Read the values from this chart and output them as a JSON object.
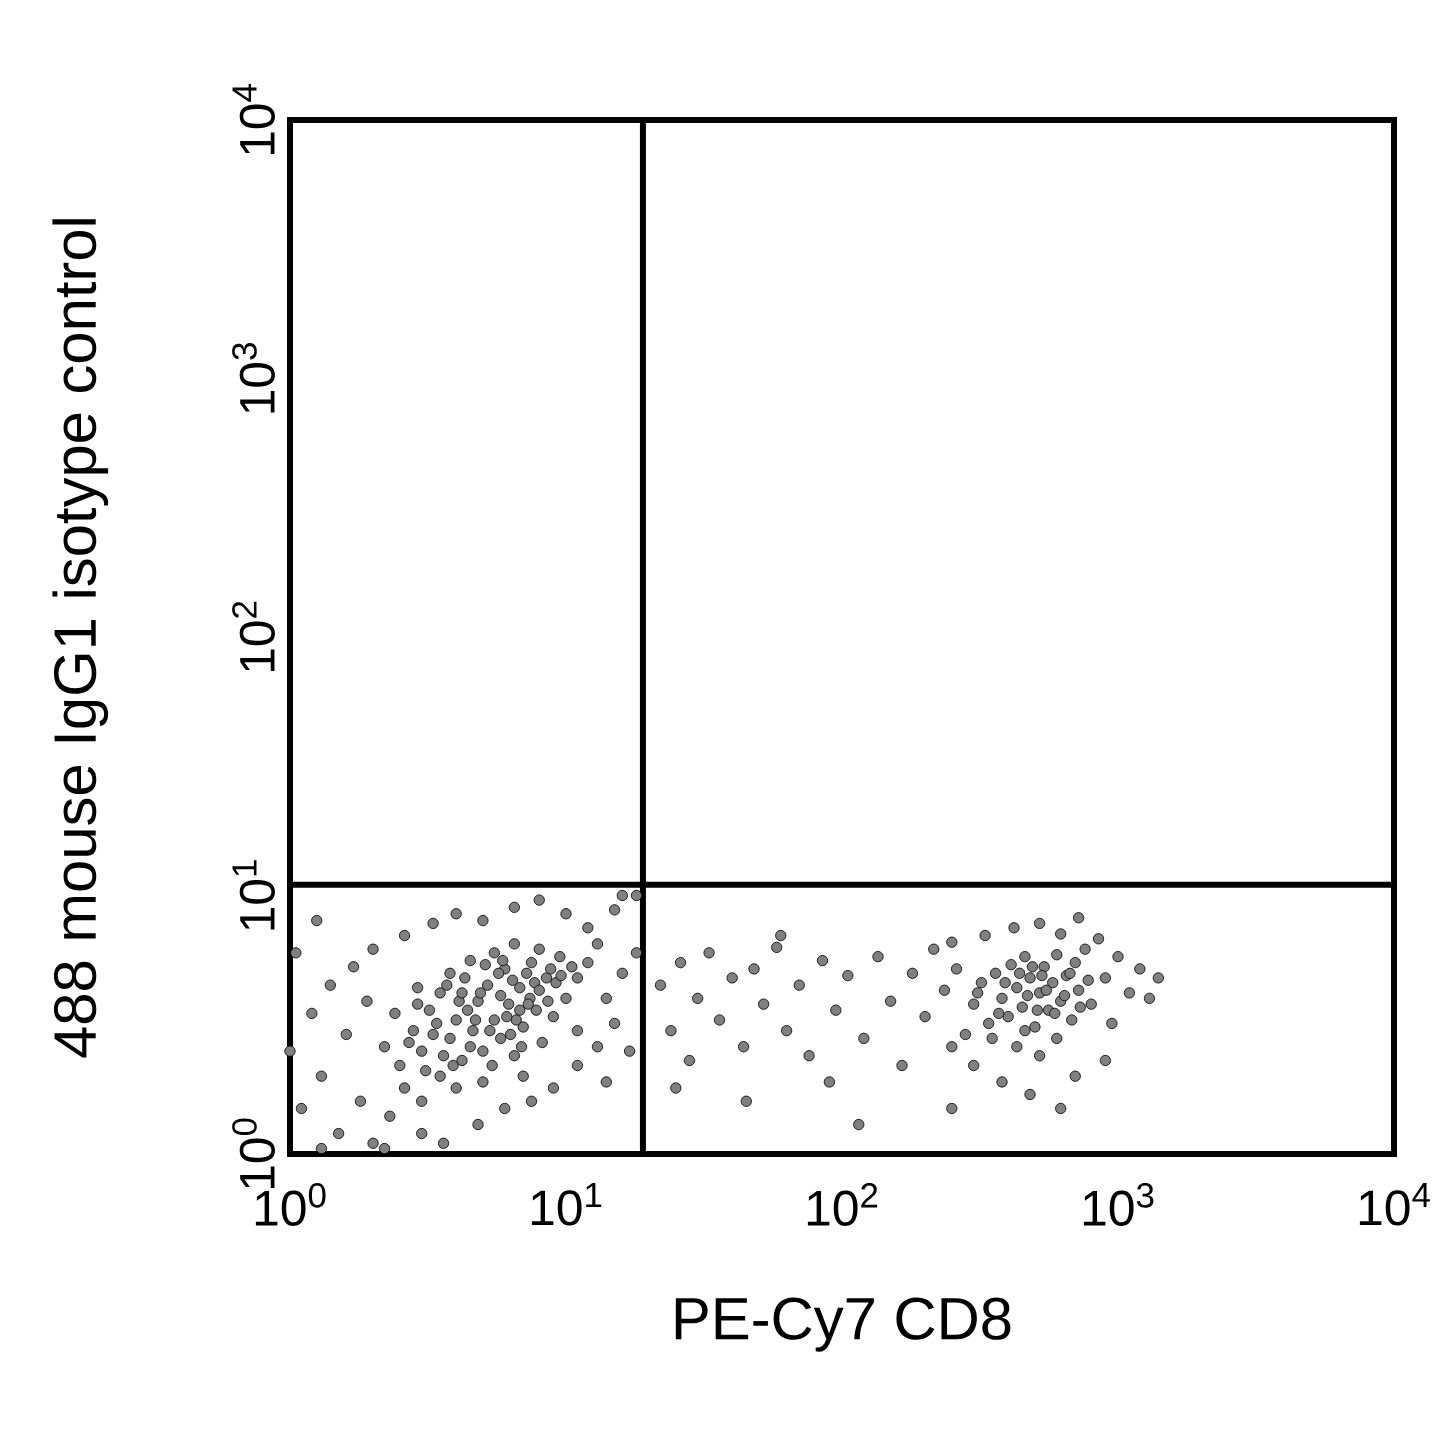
{
  "chart_data": {
    "type": "scatter",
    "xlabel": "PE-Cy7 CD8",
    "ylabel": "488 mouse IgG1 isotype control",
    "log": "xy",
    "xlim": [
      1,
      10000
    ],
    "ylim": [
      1,
      10000
    ],
    "xticks": [
      {
        "value": 1,
        "label": "10$^{0}$"
      },
      {
        "value": 10,
        "label": "10$^{1}$"
      },
      {
        "value": 100,
        "label": "10$^{2}$"
      },
      {
        "value": 1000,
        "label": "10$^{3}$"
      },
      {
        "value": 10000,
        "label": "10$^{4}$"
      }
    ],
    "yticks": [
      {
        "value": 1,
        "label": "10$^{0}$"
      },
      {
        "value": 10,
        "label": "10$^{1}$"
      },
      {
        "value": 100,
        "label": "10$^{2}$"
      },
      {
        "value": 1000,
        "label": "10$^{3}$"
      },
      {
        "value": 10000,
        "label": "10$^{4}$"
      }
    ],
    "marker": "circle",
    "color": "#808080",
    "x": [
      2.5,
      2.8,
      3.0,
      3.2,
      3.5,
      3.5,
      3.8,
      4.0,
      4.2,
      4.3,
      4.6,
      4.8,
      5.0,
      5.2,
      5.5,
      5.8,
      6.0,
      6.2,
      6.5,
      6.8,
      7.0,
      7.5,
      7.8,
      8.2,
      8.5,
      9.0,
      9.5,
      10,
      11,
      11,
      2.2,
      2.6,
      3.0,
      4.0,
      4.5,
      5.5,
      3.8,
      2.4,
      6.5,
      8.0,
      12,
      5.0,
      7.0,
      3.3,
      4.4,
      5.8,
      6.6,
      9.2,
      2.9,
      7.4,
      2.7,
      3.1,
      3.4,
      3.7,
      4.1,
      4.5,
      4.9,
      5.3,
      5.7,
      6.1,
      6.4,
      6.9,
      7.3,
      7.7,
      8.6,
      9.6,
      3.6,
      4.7,
      5.1,
      6.3,
      7.2,
      8.8,
      2.9,
      3.9,
      5.9,
      4.2,
      5.4,
      6.8,
      8.0,
      10.5,
      1.0,
      1.1,
      1.2,
      1.3,
      1.4,
      1.5,
      1.6,
      1.7,
      1.8,
      1.9,
      2.0,
      2.0,
      2.3,
      2.6,
      3.0,
      3.3,
      3.6,
      4.0,
      4.8,
      5.0,
      6.0,
      6.5,
      7.5,
      8.0,
      9.0,
      10,
      11,
      12,
      13,
      13,
      14,
      15,
      15,
      16,
      17,
      18,
      18,
      1.3,
      2.2,
      16,
      14,
      1.05,
      1.25,
      22,
      24,
      26,
      28,
      30,
      33,
      36,
      40,
      44,
      48,
      52,
      58,
      63,
      70,
      76,
      85,
      95,
      105,
      115,
      120,
      135,
      150,
      165,
      180,
      200,
      215,
      235,
      250,
      25,
      45,
      90,
      60,
      300,
      320,
      340,
      360,
      380,
      400,
      410,
      430,
      450,
      460,
      480,
      500,
      520,
      540,
      560,
      580,
      600,
      620,
      650,
      680,
      700,
      720,
      760,
      800,
      350,
      430,
      520,
      600,
      310,
      370,
      390,
      440,
      470,
      490,
      510,
      530,
      550,
      590,
      640,
      670,
      730,
      780,
      460,
      260,
      280,
      250,
      330,
      420,
      520,
      620,
      720,
      850,
      900,
      950,
      1000,
      1100,
      1200,
      1300,
      1400,
      900,
      700,
      480,
      380,
      300,
      620,
      250
    ],
    "values": [
      2.2,
      3.0,
      2.5,
      3.6,
      2.0,
      4.2,
      2.8,
      3.3,
      2.3,
      4.8,
      3.0,
      3.9,
      2.5,
      4.5,
      3.3,
      2.8,
      5.2,
      3.8,
      2.4,
      4.4,
      3.1,
      5.5,
      3.6,
      2.7,
      4.8,
      3.4,
      5.8,
      4.0,
      4.8,
      3.0,
      2.6,
      1.8,
      1.6,
      1.8,
      5.6,
      6.0,
      5.0,
      3.5,
      6.5,
      6.2,
      5.5,
      1.9,
      2.0,
      2.9,
      3.6,
      4.1,
      3.3,
      4.6,
      4.4,
      4.0,
      2.7,
      2.1,
      3.2,
      4.5,
      3.9,
      2.6,
      4.2,
      3.0,
      5.0,
      3.4,
      4.7,
      2.6,
      3.8,
      4.6,
      3.9,
      4.9,
      2.4,
      3.3,
      5.4,
      2.9,
      5.0,
      5.2,
      3.8,
      2.2,
      5.6,
      4.2,
      2.2,
      3.6,
      4.3,
      5.3,
      2.5,
      1.5,
      3.5,
      2.0,
      4.5,
      1.2,
      2.9,
      5.3,
      1.6,
      3.9,
      1.1,
      6.2,
      1.4,
      7.0,
      1.2,
      7.8,
      1.1,
      8.5,
      1.3,
      8.0,
      1.5,
      9.0,
      1.6,
      9.6,
      1.8,
      8.5,
      2.2,
      7.5,
      2.6,
      6.5,
      4.0,
      3.2,
      8.8,
      5.0,
      2.5,
      6.0,
      10,
      1.05,
      1.05,
      10,
      1.9,
      6.0,
      8.0,
      4.5,
      3.0,
      5.5,
      2.3,
      4.0,
      6.0,
      3.3,
      4.8,
      2.6,
      5.2,
      3.8,
      6.3,
      3.0,
      4.5,
      2.4,
      5.6,
      3.6,
      4.9,
      1.3,
      2.8,
      5.8,
      3.9,
      2.2,
      5.0,
      3.4,
      6.2,
      4.3,
      2.6,
      1.8,
      1.6,
      1.9,
      7.0,
      3.8,
      4.6,
      3.2,
      5.0,
      4.0,
      3.4,
      5.4,
      4.4,
      3.7,
      5.8,
      4.8,
      3.1,
      4.2,
      5.3,
      3.6,
      4.6,
      5.9,
      3.9,
      4.9,
      3.3,
      5.5,
      4.3,
      6.2,
      3.8,
      2.8,
      2.6,
      2.4,
      2.8,
      4.2,
      3.5,
      4.6,
      5.0,
      4.1,
      5.3,
      3.6,
      4.9,
      4.3,
      3.5,
      4.1,
      5.0,
      3.7,
      4.7,
      3.0,
      5.2,
      2.9,
      6.6,
      7.0,
      7.5,
      7.8,
      7.1,
      8.2,
      6.8,
      4.8,
      3.2,
      5.8,
      4.2,
      5.2,
      4.0,
      4.8,
      2.3,
      2.0,
      1.7,
      1.9,
      2.2,
      1.5,
      1.5
    ],
    "ref_lines": [
      {
        "axis": "x",
        "value": 19,
        "color": "#000000"
      },
      {
        "axis": "y",
        "value": 11,
        "color": "#000000"
      }
    ]
  }
}
